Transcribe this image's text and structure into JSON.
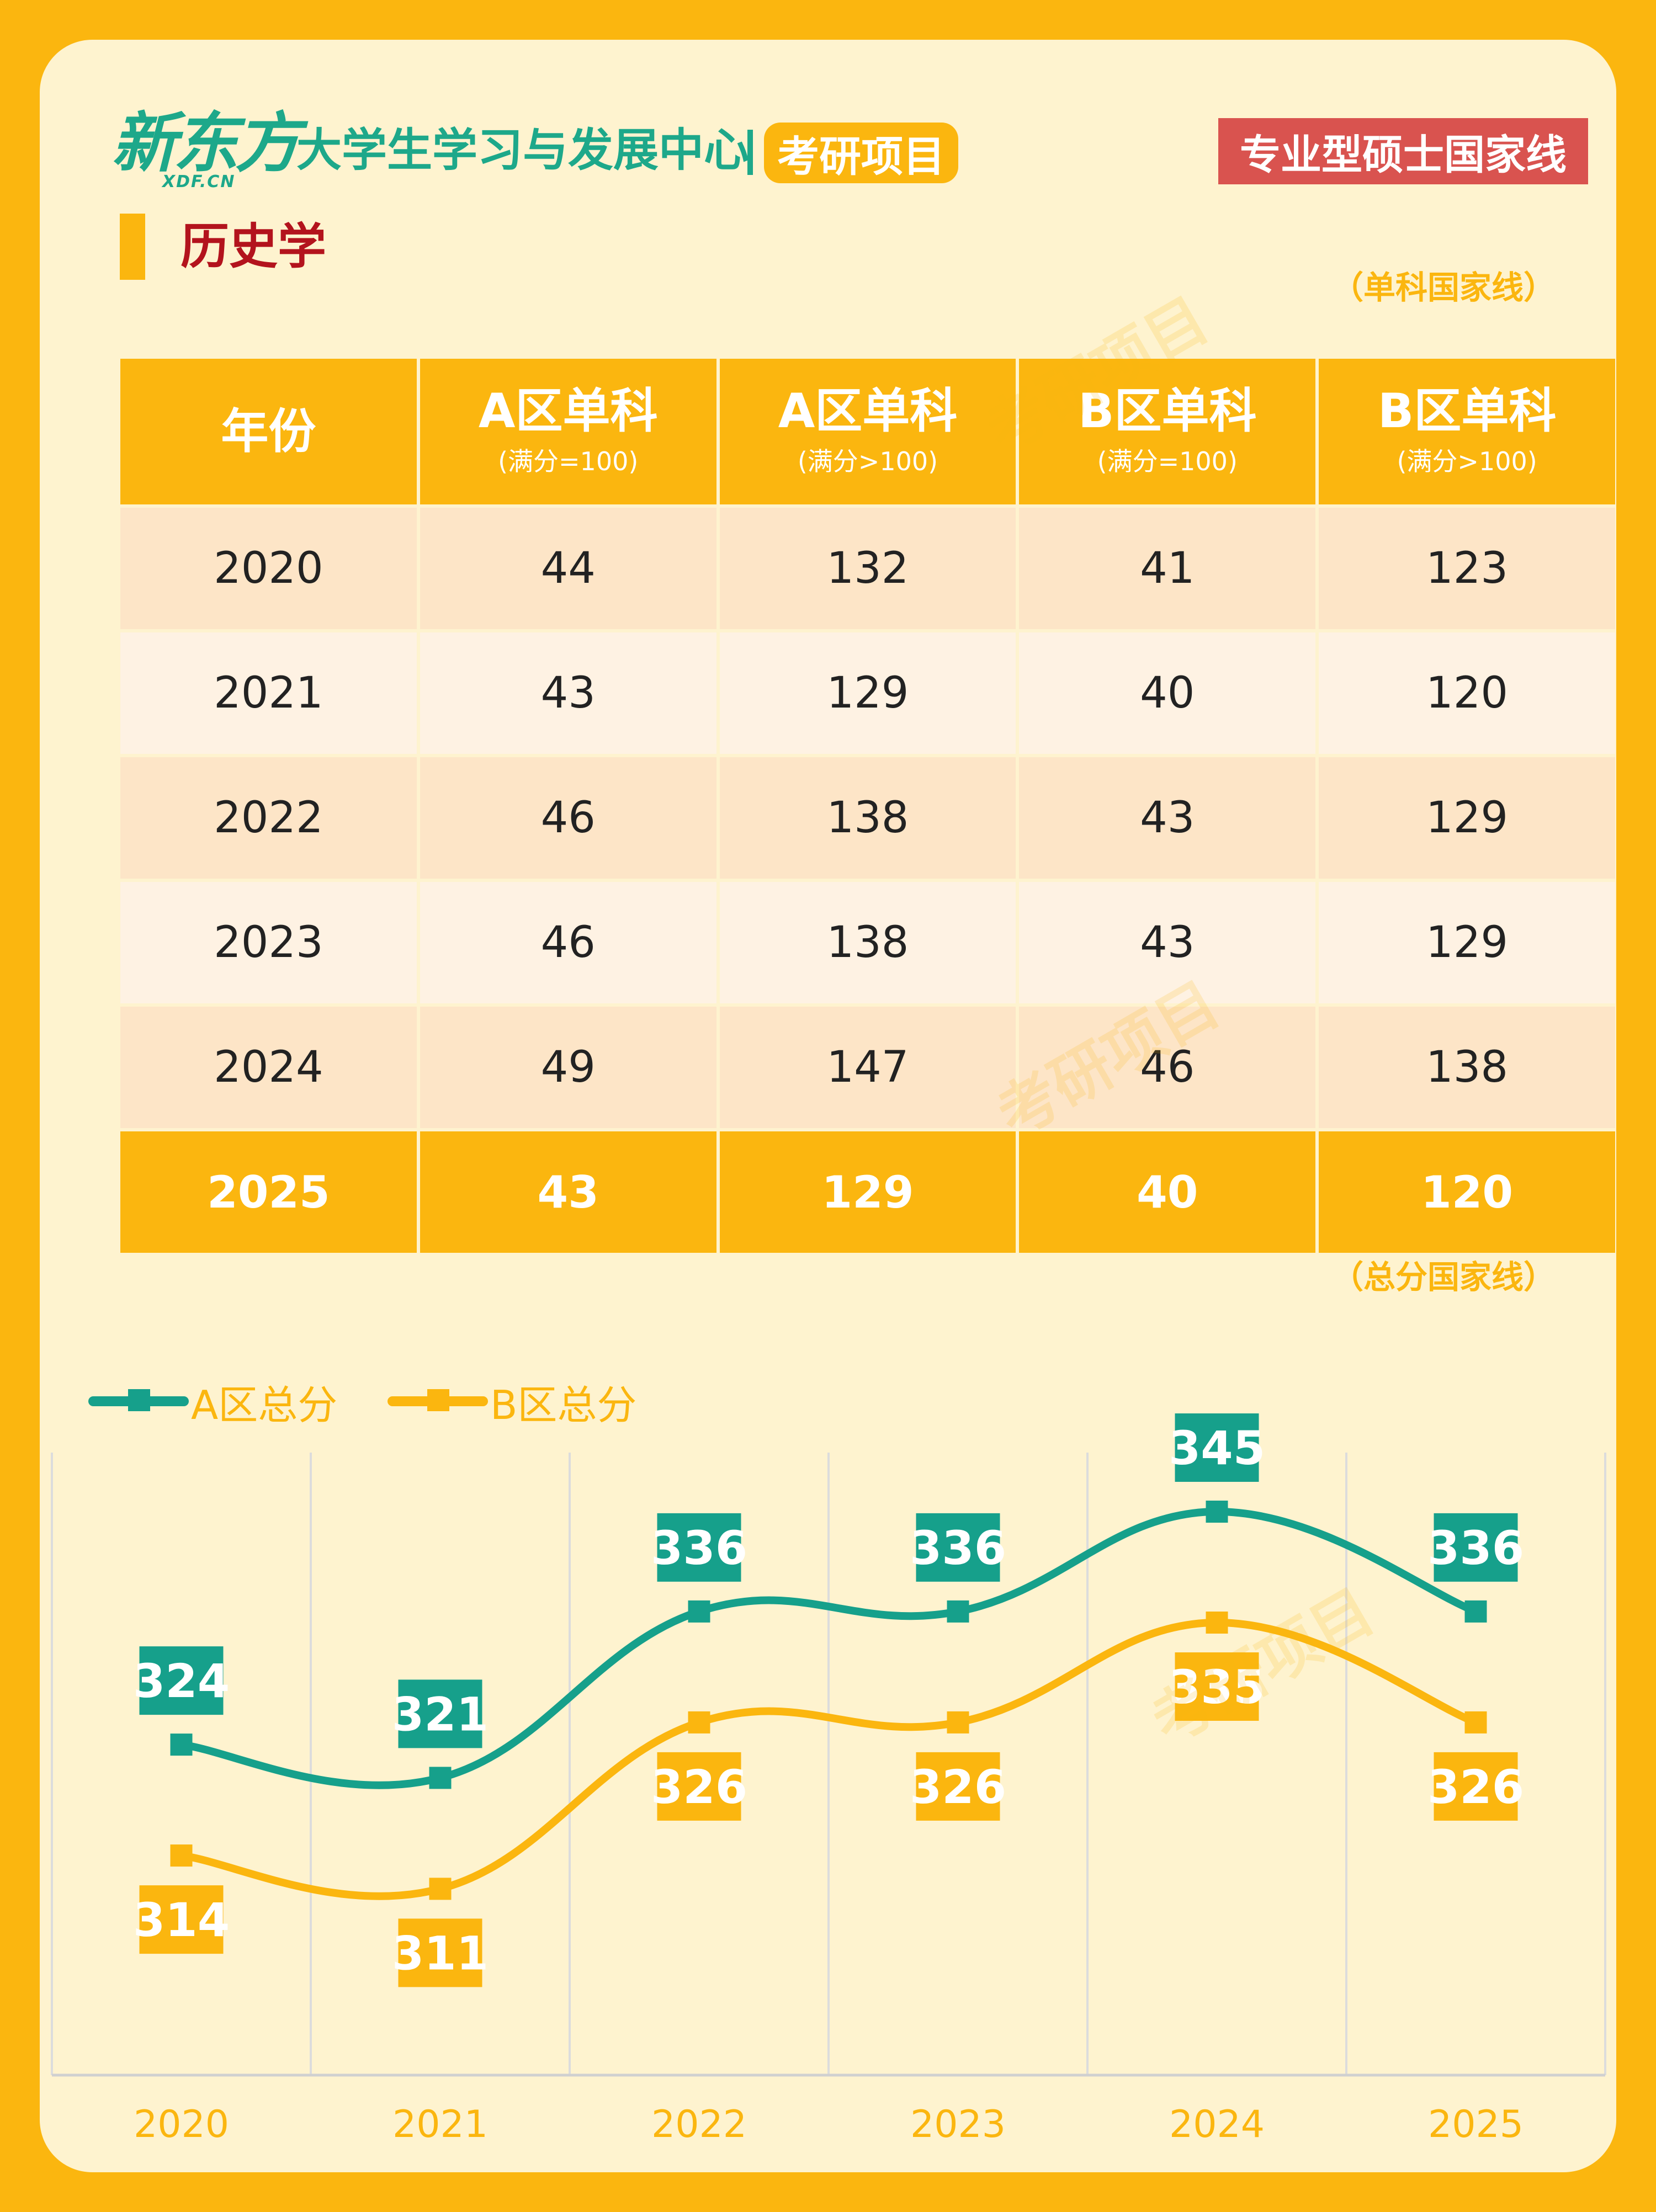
{
  "header": {
    "logo": "新东方",
    "logo_sub": "XDF.CN",
    "center_name": "大学生学习与发展中心",
    "project": "考研项目",
    "type_badge": "专业型硕士国家线"
  },
  "subject": "历史学",
  "single_note": "（单科国家线）",
  "total_note": "（总分国家线）",
  "table": {
    "headers": [
      {
        "main": "年份",
        "sub": ""
      },
      {
        "main": "A区单科",
        "sub": "(满分=100)"
      },
      {
        "main": "A区单科",
        "sub": "(满分>100)"
      },
      {
        "main": "B区单科",
        "sub": "(满分=100)"
      },
      {
        "main": "B区单科",
        "sub": "(满分>100)"
      }
    ],
    "rows": [
      [
        "2020",
        "44",
        "132",
        "41",
        "123"
      ],
      [
        "2021",
        "43",
        "129",
        "40",
        "120"
      ],
      [
        "2022",
        "46",
        "138",
        "43",
        "129"
      ],
      [
        "2023",
        "46",
        "138",
        "43",
        "129"
      ],
      [
        "2024",
        "49",
        "147",
        "46",
        "138"
      ],
      [
        "2025",
        "43",
        "129",
        "40",
        "120"
      ]
    ]
  },
  "colors": {
    "teal": "#16A08B",
    "orange": "#FBB60F"
  },
  "chart_data": {
    "type": "line",
    "title": "总分国家线",
    "categories": [
      "2020",
      "2021",
      "2022",
      "2023",
      "2024",
      "2025"
    ],
    "series": [
      {
        "name": "A区总分",
        "values": [
          324,
          321,
          336,
          336,
          345,
          336
        ]
      },
      {
        "name": "B区总分",
        "values": [
          314,
          311,
          326,
          326,
          335,
          326
        ]
      }
    ],
    "legend": "top-left",
    "grid": "vertical",
    "smooth": true
  }
}
